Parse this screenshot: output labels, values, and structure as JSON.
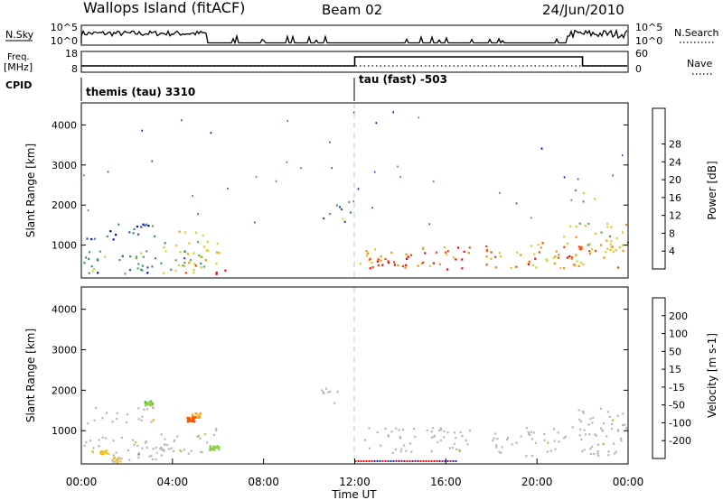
{
  "header": {
    "station": "Wallops Island (fitACF)",
    "beam": "Beam 02",
    "date": "24/Jun/2010"
  },
  "panels": {
    "nsky": {
      "label": "N.Sky",
      "right_label": "N.Search",
      "ticks_left": [
        "10^5",
        "10^0"
      ],
      "ticks_right": [
        "10^5",
        "10^0"
      ]
    },
    "freq": {
      "label_line1": "Freq.",
      "label_line2": "[MHz]",
      "right_label": "Nave",
      "ticks_left": [
        "18",
        "8"
      ],
      "ticks_right": [
        "60",
        "0"
      ]
    },
    "cpid": {
      "label": "CPID",
      "modes": [
        {
          "name": "themis (tau) 3310",
          "start_hour": 0,
          "end_hour": 12
        },
        {
          "name": "tau (fast) -503",
          "start_hour": 12,
          "end_hour": 24
        }
      ]
    }
  },
  "colors": {
    "power": [
      "#0000ff",
      "#2a52b8",
      "#3f8f7a",
      "#5aa85a",
      "#c8d82a",
      "#f0c020",
      "#ff8c00",
      "#ff4000",
      "#ff0000"
    ],
    "velocity": [
      "#1a2ab8",
      "#2f5fd8",
      "#3fb040",
      "#8ad040",
      "#c0c0c0",
      "#f0c020",
      "#ff9a00",
      "#ff5000",
      "#ff0000"
    ],
    "ground": "#b8b8b8",
    "dashed_line": "#c0c0c0"
  },
  "chart_data": [
    {
      "type": "heatmap",
      "name": "power",
      "xlabel": "",
      "ylabel": "Slant Range [km]",
      "xlim": [
        0,
        24
      ],
      "ylim": [
        180,
        4550
      ],
      "yticks": [
        1000,
        2000,
        3000,
        4000
      ],
      "colorbar": {
        "label": "Power [dB]",
        "ticks": [
          "4",
          "8",
          "12",
          "16",
          "20",
          "24",
          "28"
        ],
        "range": [
          0,
          30
        ]
      },
      "scatter_regions": [
        {
          "t0": 0.0,
          "t1": 3.0,
          "r0": 300,
          "r1": 900,
          "value": 8
        },
        {
          "t0": 0.0,
          "t1": 3.2,
          "r0": 1150,
          "r1": 1600,
          "value": 6
        },
        {
          "t0": 2.5,
          "t1": 6.0,
          "r0": 300,
          "r1": 1200,
          "value": 12
        },
        {
          "t0": 4.2,
          "t1": 5.5,
          "r0": 1250,
          "r1": 1450,
          "value": 18
        },
        {
          "t0": 4.5,
          "t1": 6.2,
          "r0": 500,
          "r1": 850,
          "value": 20
        },
        {
          "t0": 4.0,
          "t1": 6.5,
          "r0": 300,
          "r1": 420,
          "value": 30
        },
        {
          "t0": 10.5,
          "t1": 11.8,
          "r0": 1600,
          "r1": 2100,
          "value": 10
        },
        {
          "t0": 12.2,
          "t1": 17.2,
          "r0": 500,
          "r1": 1000,
          "value": 22
        },
        {
          "t0": 12.5,
          "t1": 16.8,
          "r0": 400,
          "r1": 700,
          "value": 29
        },
        {
          "t0": 17.5,
          "t1": 24.0,
          "r0": 450,
          "r1": 1100,
          "value": 20
        },
        {
          "t0": 21.0,
          "t1": 24.0,
          "r0": 900,
          "r1": 1600,
          "value": 17
        },
        {
          "t0": 19.5,
          "t1": 21.5,
          "r0": 500,
          "r1": 750,
          "value": 28
        },
        {
          "t0": 21.5,
          "t1": 22.5,
          "r0": 2100,
          "r1": 2400,
          "value": 14
        }
      ]
    },
    {
      "type": "heatmap",
      "name": "velocity",
      "xlabel": "Time UT",
      "ylabel": "Slant Range [km]",
      "xlim": [
        0,
        24
      ],
      "ylim": [
        180,
        4550
      ],
      "yticks": [
        1000,
        2000,
        3000,
        4000
      ],
      "xticks": [
        "00:00",
        "04:00",
        "08:00",
        "12:00",
        "16:00",
        "20:00",
        "00:00"
      ],
      "colorbar": {
        "label": "Velocity [m s-1]",
        "ticks": [
          "200",
          "100",
          "50",
          "15",
          "-15",
          "-50",
          "-100",
          "-200"
        ],
        "range": [
          -250,
          250
        ]
      },
      "ground_scatter_regions": [
        {
          "t0": 0.0,
          "t1": 3.5,
          "r0": 300,
          "r1": 900
        },
        {
          "t0": 0.0,
          "t1": 3.2,
          "r0": 1200,
          "r1": 1600
        },
        {
          "t0": 3.0,
          "t1": 6.0,
          "r0": 400,
          "r1": 1100
        },
        {
          "t0": 10.5,
          "t1": 11.8,
          "r0": 1700,
          "r1": 2100
        },
        {
          "t0": 12.2,
          "t1": 17.2,
          "r0": 450,
          "r1": 1100
        },
        {
          "t0": 18.0,
          "t1": 24.0,
          "r0": 400,
          "r1": 1100
        },
        {
          "t0": 21.5,
          "t1": 24.0,
          "r0": 1000,
          "r1": 1600
        }
      ],
      "velocity_spots": [
        {
          "t": 5.0,
          "r": 1400,
          "value": -60
        },
        {
          "t": 4.8,
          "r": 1300,
          "value": -120
        },
        {
          "t": 2.9,
          "r": 1700,
          "value": 40
        },
        {
          "t": 1.0,
          "r": 500,
          "value": -30
        },
        {
          "t": 5.8,
          "r": 600,
          "value": 30
        },
        {
          "t": 1.5,
          "r": 300,
          "value": -20
        }
      ]
    }
  ]
}
